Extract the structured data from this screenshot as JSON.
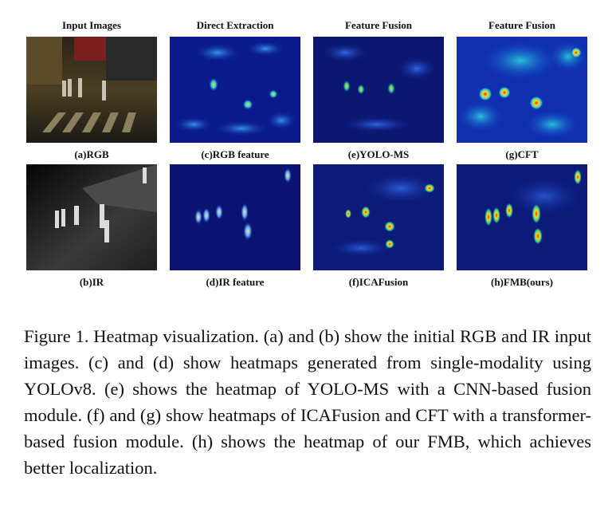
{
  "figure": {
    "column_headers": [
      "Input Images",
      "Direct Extraction",
      "Feature Fusion",
      "Feature Fusion"
    ],
    "panels": [
      {
        "label": "(a)RGB",
        "kind": "rgb"
      },
      {
        "label": "(c)RGB feature",
        "kind": "heat"
      },
      {
        "label": "(e)YOLO-MS",
        "kind": "heat"
      },
      {
        "label": "(g)CFT",
        "kind": "heat"
      },
      {
        "label": "(b)IR",
        "kind": "ir"
      },
      {
        "label": "(d)IR feature",
        "kind": "heat"
      },
      {
        "label": "(f)ICAFusion",
        "kind": "heat"
      },
      {
        "label": "(h)FMB(ours)",
        "kind": "heat"
      }
    ],
    "colors": {
      "heat_base": "#0a1a8c",
      "heat_hot": "#f2e21a",
      "heat_peak": "#e0301e",
      "ir_bg": "#0d0d0d"
    }
  },
  "caption": {
    "text": "Figure 1.  Heatmap visualization.   (a) and (b) show the initial RGB and IR input images.  (c) and (d) show heatmaps generated from single-modality using YOLOv8.  (e) shows the heatmap of YOLO-MS with a CNN-based fusion module.  (f) and (g) show heatmaps of ICAFusion and CFT with a transformer-based fusion module.  (h) shows the heatmap of our FMB, which achieves better localization."
  }
}
